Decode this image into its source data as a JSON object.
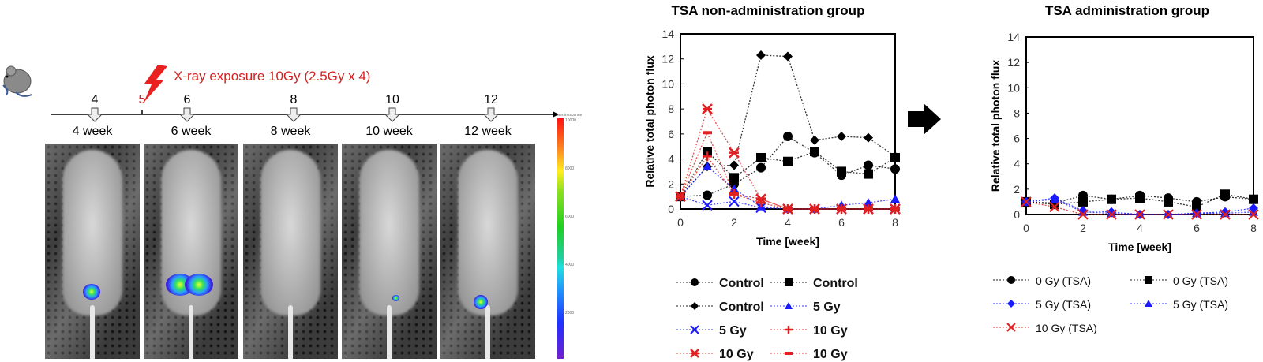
{
  "timeline": {
    "exposure_label": "X-ray exposure 10Gy (2.5Gy x 4)",
    "ticks": [
      "4",
      "5",
      "6",
      "8",
      "10",
      "12"
    ],
    "exposure_tick": "5",
    "week_labels": [
      "4 week",
      "6 week",
      "8 week",
      "10 week",
      "12 week"
    ]
  },
  "colorbar": {
    "title": "Luminescence",
    "labels": [
      "10000",
      "8000",
      "6000",
      "4000",
      "2000"
    ]
  },
  "colors": {
    "control": "#000000",
    "gy5": "#1a1aff",
    "gy10": "#e02020",
    "xray": "#d42020"
  },
  "chart_data": [
    {
      "type": "line",
      "title": "TSA non-administration group",
      "xlabel": "Time [week]",
      "ylabel": "Relative total photon flux",
      "xlim": [
        0,
        8
      ],
      "ylim": [
        0,
        14
      ],
      "xticks": [
        "0",
        "2",
        "4",
        "6",
        "8"
      ],
      "yticks": [
        "0",
        "2",
        "4",
        "6",
        "8",
        "10",
        "12",
        "14"
      ],
      "x": [
        0,
        1,
        2,
        3,
        4,
        5,
        6,
        7,
        8
      ],
      "legend": "bottom",
      "series": [
        {
          "name": "Control",
          "marker": "circle",
          "color": "#000000",
          "values": [
            1,
            1.1,
            2.0,
            3.3,
            5.8,
            4.5,
            2.7,
            3.5,
            3.2
          ]
        },
        {
          "name": "Control",
          "marker": "square",
          "color": "#000000",
          "values": [
            1,
            4.6,
            2.5,
            4.1,
            3.8,
            4.6,
            3.0,
            2.8,
            4.1
          ]
        },
        {
          "name": "Control",
          "marker": "diamond",
          "color": "#000000",
          "values": [
            1,
            3.4,
            3.5,
            12.3,
            12.2,
            5.5,
            5.8,
            5.7,
            4.2
          ]
        },
        {
          "name": "5 Gy",
          "marker": "triangle",
          "color": "#1a1aff",
          "values": [
            1,
            3.4,
            1.6,
            0.2,
            0,
            0,
            0.3,
            0.5,
            0.8
          ]
        },
        {
          "name": "5 Gy",
          "marker": "x",
          "color": "#1a1aff",
          "values": [
            1,
            0.3,
            0.6,
            0.1,
            0,
            0,
            0,
            0,
            0
          ]
        },
        {
          "name": "10 Gy",
          "marker": "plus",
          "color": "#e02020",
          "values": [
            1,
            4.2,
            1.2,
            0.5,
            0,
            0,
            0,
            0,
            0
          ]
        },
        {
          "name": "10 Gy",
          "marker": "asterisk",
          "color": "#e02020",
          "values": [
            1,
            8.0,
            4.5,
            0.8,
            0,
            0,
            0,
            0,
            0
          ]
        },
        {
          "name": "10 Gy",
          "marker": "dash",
          "color": "#e02020",
          "values": [
            1,
            6.1,
            1.2,
            0.8,
            0,
            0,
            0,
            0,
            0
          ]
        }
      ]
    },
    {
      "type": "line",
      "title": "TSA administration group",
      "xlabel": "Time [week]",
      "ylabel": "Relative total photon flux",
      "xlim": [
        0,
        8
      ],
      "ylim": [
        0,
        14
      ],
      "xticks": [
        "0",
        "2",
        "4",
        "6",
        "8"
      ],
      "yticks": [
        "0",
        "2",
        "4",
        "6",
        "8",
        "10",
        "12",
        "14"
      ],
      "x": [
        0,
        1,
        2,
        3,
        4,
        5,
        6,
        7,
        8
      ],
      "legend": "bottom",
      "series": [
        {
          "name": "0 Gy (TSA)",
          "marker": "circle",
          "color": "#000000",
          "values": [
            1,
            0.9,
            1.5,
            1.2,
            1.5,
            1.3,
            1.0,
            1.4,
            1.2
          ]
        },
        {
          "name": "0 Gy (TSA)",
          "marker": "square",
          "color": "#000000",
          "values": [
            1,
            0.8,
            1.0,
            1.2,
            1.3,
            1.0,
            0.6,
            1.6,
            1.2
          ]
        },
        {
          "name": "5 Gy (TSA)",
          "marker": "diamond",
          "color": "#1a1aff",
          "values": [
            1,
            1.3,
            0.3,
            0.2,
            0,
            0,
            0.1,
            0.2,
            0.5
          ]
        },
        {
          "name": "5 Gy (TSA)",
          "marker": "triangle",
          "color": "#1a1aff",
          "values": [
            1,
            1.2,
            0.2,
            0.1,
            0,
            0,
            0.1,
            0.1,
            0.2
          ]
        },
        {
          "name": "10 Gy (TSA)",
          "marker": "x",
          "color": "#e02020",
          "values": [
            1,
            0.6,
            0,
            0,
            0,
            0,
            0,
            0,
            0
          ]
        }
      ]
    }
  ]
}
